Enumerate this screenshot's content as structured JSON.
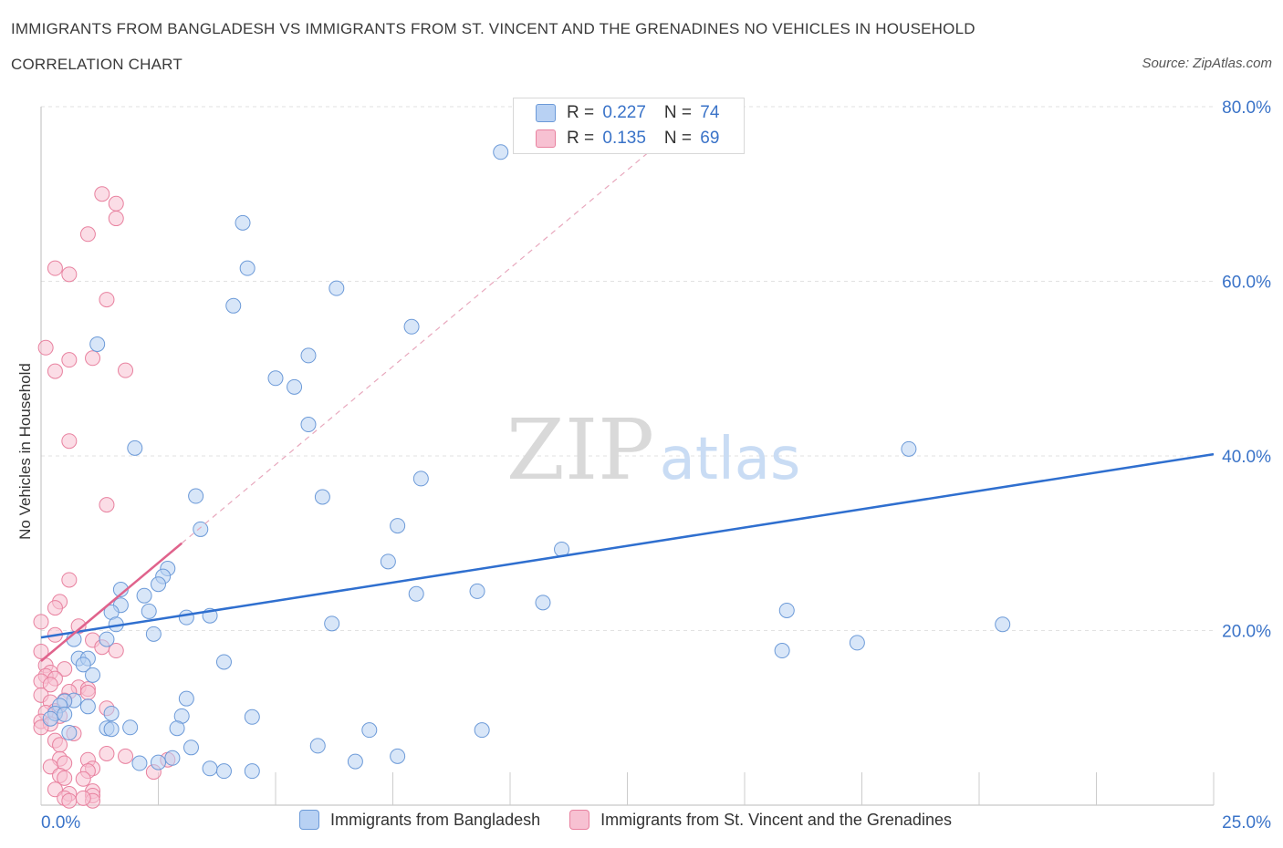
{
  "header": {
    "title": "IMMIGRANTS FROM BANGLADESH VS IMMIGRANTS FROM ST. VINCENT AND THE GRENADINES NO VEHICLES IN HOUSEHOLD",
    "subtitle": "CORRELATION CHART",
    "source": "Source: ZipAtlas.com"
  },
  "legend": {
    "blue": {
      "r_label": "R = ",
      "r_value": "0.227",
      "n_label": "N = ",
      "n_value": "74"
    },
    "pink": {
      "r_label": "R = ",
      "r_value": "0.135",
      "n_label": "N = ",
      "n_value": "69"
    }
  },
  "colors": {
    "blue_fill": "#b8d1f3",
    "blue_stroke": "#6c9ad8",
    "blue_line": "#2f6fcf",
    "pink_fill": "#f7c1d2",
    "pink_stroke": "#e8819f",
    "pink_line": "#e0638c",
    "grid": "#e2e2e2",
    "axis_label": "#3a73c8"
  },
  "chart_data": {
    "type": "scatter",
    "xlabel": "",
    "ylabel": "No Vehicles in Household",
    "xlim": [
      0,
      25
    ],
    "ylim": [
      0,
      80
    ],
    "x_tick_labels": [
      "0.0%",
      "25.0%"
    ],
    "y_tick_values": [
      20,
      40,
      60,
      80
    ],
    "y_tick_labels": [
      "20.0%",
      "40.0%",
      "60.0%",
      "80.0%"
    ],
    "watermark": {
      "zip": "ZIP",
      "atlas": "atlas"
    },
    "series": [
      {
        "name": "Immigrants from Bangladesh",
        "color": "blue",
        "trend": {
          "x0": 0,
          "y0": 19.2,
          "x1": 25,
          "y1": 40.2,
          "dashed_extension": false
        },
        "points": [
          [
            9.8,
            74.8
          ],
          [
            4.3,
            66.7
          ],
          [
            4.4,
            61.5
          ],
          [
            6.3,
            59.2
          ],
          [
            4.1,
            57.2
          ],
          [
            7.9,
            54.8
          ],
          [
            1.2,
            52.8
          ],
          [
            5.7,
            51.5
          ],
          [
            5.0,
            48.9
          ],
          [
            5.4,
            47.9
          ],
          [
            5.7,
            43.6
          ],
          [
            2.0,
            40.9
          ],
          [
            18.5,
            40.8
          ],
          [
            8.1,
            37.4
          ],
          [
            3.3,
            35.4
          ],
          [
            6.0,
            35.3
          ],
          [
            3.4,
            31.6
          ],
          [
            7.6,
            32.0
          ],
          [
            11.1,
            29.3
          ],
          [
            7.4,
            27.9
          ],
          [
            2.7,
            27.1
          ],
          [
            2.6,
            26.2
          ],
          [
            2.5,
            25.3
          ],
          [
            1.7,
            24.7
          ],
          [
            8.0,
            24.2
          ],
          [
            9.3,
            24.5
          ],
          [
            10.7,
            23.2
          ],
          [
            2.2,
            24.0
          ],
          [
            1.7,
            22.9
          ],
          [
            1.5,
            22.1
          ],
          [
            2.3,
            22.2
          ],
          [
            15.9,
            22.3
          ],
          [
            3.1,
            21.5
          ],
          [
            3.6,
            21.7
          ],
          [
            6.2,
            20.8
          ],
          [
            20.5,
            20.7
          ],
          [
            1.6,
            20.7
          ],
          [
            2.4,
            19.6
          ],
          [
            1.4,
            19.0
          ],
          [
            0.7,
            19.0
          ],
          [
            17.4,
            18.6
          ],
          [
            15.8,
            17.7
          ],
          [
            0.8,
            16.8
          ],
          [
            1.0,
            16.8
          ],
          [
            0.9,
            16.1
          ],
          [
            3.9,
            16.4
          ],
          [
            1.1,
            14.9
          ],
          [
            0.7,
            12.0
          ],
          [
            0.5,
            11.9
          ],
          [
            3.1,
            12.2
          ],
          [
            0.4,
            11.4
          ],
          [
            0.3,
            10.5
          ],
          [
            0.2,
            9.9
          ],
          [
            0.5,
            10.4
          ],
          [
            1.0,
            11.3
          ],
          [
            1.5,
            10.5
          ],
          [
            4.5,
            10.1
          ],
          [
            3.0,
            10.2
          ],
          [
            2.9,
            8.8
          ],
          [
            1.9,
            8.9
          ],
          [
            1.4,
            8.8
          ],
          [
            1.5,
            8.7
          ],
          [
            7.0,
            8.6
          ],
          [
            9.4,
            8.6
          ],
          [
            0.6,
            8.3
          ],
          [
            3.2,
            6.6
          ],
          [
            5.9,
            6.8
          ],
          [
            7.6,
            5.6
          ],
          [
            6.7,
            5.0
          ],
          [
            2.8,
            5.4
          ],
          [
            2.1,
            4.8
          ],
          [
            2.5,
            4.9
          ],
          [
            3.6,
            4.2
          ],
          [
            3.9,
            3.9
          ],
          [
            4.5,
            3.9
          ]
        ]
      },
      {
        "name": "Immigrants from St. Vincent and the Grenadines",
        "color": "pink",
        "trend": {
          "x0": 0,
          "y0": 16.5,
          "x1": 3.0,
          "y1": 30.0,
          "dashed_extension": true,
          "x2": 13.0,
          "y2": 75.0
        },
        "points": [
          [
            1.3,
            70.0
          ],
          [
            1.6,
            68.9
          ],
          [
            1.6,
            67.2
          ],
          [
            1.0,
            65.4
          ],
          [
            0.3,
            61.5
          ],
          [
            0.6,
            60.8
          ],
          [
            1.4,
            57.9
          ],
          [
            0.1,
            52.4
          ],
          [
            1.1,
            51.2
          ],
          [
            0.6,
            51.0
          ],
          [
            1.8,
            49.8
          ],
          [
            0.3,
            49.7
          ],
          [
            0.6,
            41.7
          ],
          [
            1.4,
            34.4
          ],
          [
            0.6,
            25.8
          ],
          [
            0.4,
            23.3
          ],
          [
            0.3,
            22.6
          ],
          [
            0.0,
            21.0
          ],
          [
            0.8,
            20.5
          ],
          [
            0.3,
            19.5
          ],
          [
            1.1,
            18.9
          ],
          [
            1.3,
            18.1
          ],
          [
            1.6,
            17.7
          ],
          [
            0.0,
            17.6
          ],
          [
            0.1,
            16.0
          ],
          [
            0.5,
            15.6
          ],
          [
            0.2,
            15.2
          ],
          [
            0.1,
            14.8
          ],
          [
            0.3,
            14.5
          ],
          [
            0.0,
            14.2
          ],
          [
            0.2,
            13.8
          ],
          [
            0.8,
            13.5
          ],
          [
            1.0,
            13.3
          ],
          [
            0.6,
            13.0
          ],
          [
            1.0,
            12.9
          ],
          [
            0.0,
            12.6
          ],
          [
            0.5,
            12.0
          ],
          [
            0.2,
            11.8
          ],
          [
            1.4,
            11.1
          ],
          [
            0.3,
            10.8
          ],
          [
            0.1,
            10.6
          ],
          [
            0.4,
            10.2
          ],
          [
            0.0,
            9.6
          ],
          [
            0.2,
            9.3
          ],
          [
            0.0,
            8.9
          ],
          [
            0.7,
            8.2
          ],
          [
            0.3,
            7.4
          ],
          [
            0.4,
            6.9
          ],
          [
            1.4,
            5.9
          ],
          [
            1.8,
            5.6
          ],
          [
            0.4,
            5.3
          ],
          [
            1.0,
            5.2
          ],
          [
            0.5,
            4.8
          ],
          [
            0.2,
            4.4
          ],
          [
            1.1,
            4.2
          ],
          [
            1.0,
            3.9
          ],
          [
            0.4,
            3.4
          ],
          [
            0.5,
            3.1
          ],
          [
            0.9,
            3.0
          ],
          [
            2.7,
            5.2
          ],
          [
            2.4,
            3.8
          ],
          [
            0.3,
            1.8
          ],
          [
            1.1,
            1.6
          ],
          [
            0.6,
            1.3
          ],
          [
            1.1,
            1.1
          ],
          [
            0.5,
            0.8
          ],
          [
            0.6,
            0.5
          ],
          [
            1.1,
            0.5
          ],
          [
            0.9,
            0.8
          ]
        ]
      }
    ]
  }
}
